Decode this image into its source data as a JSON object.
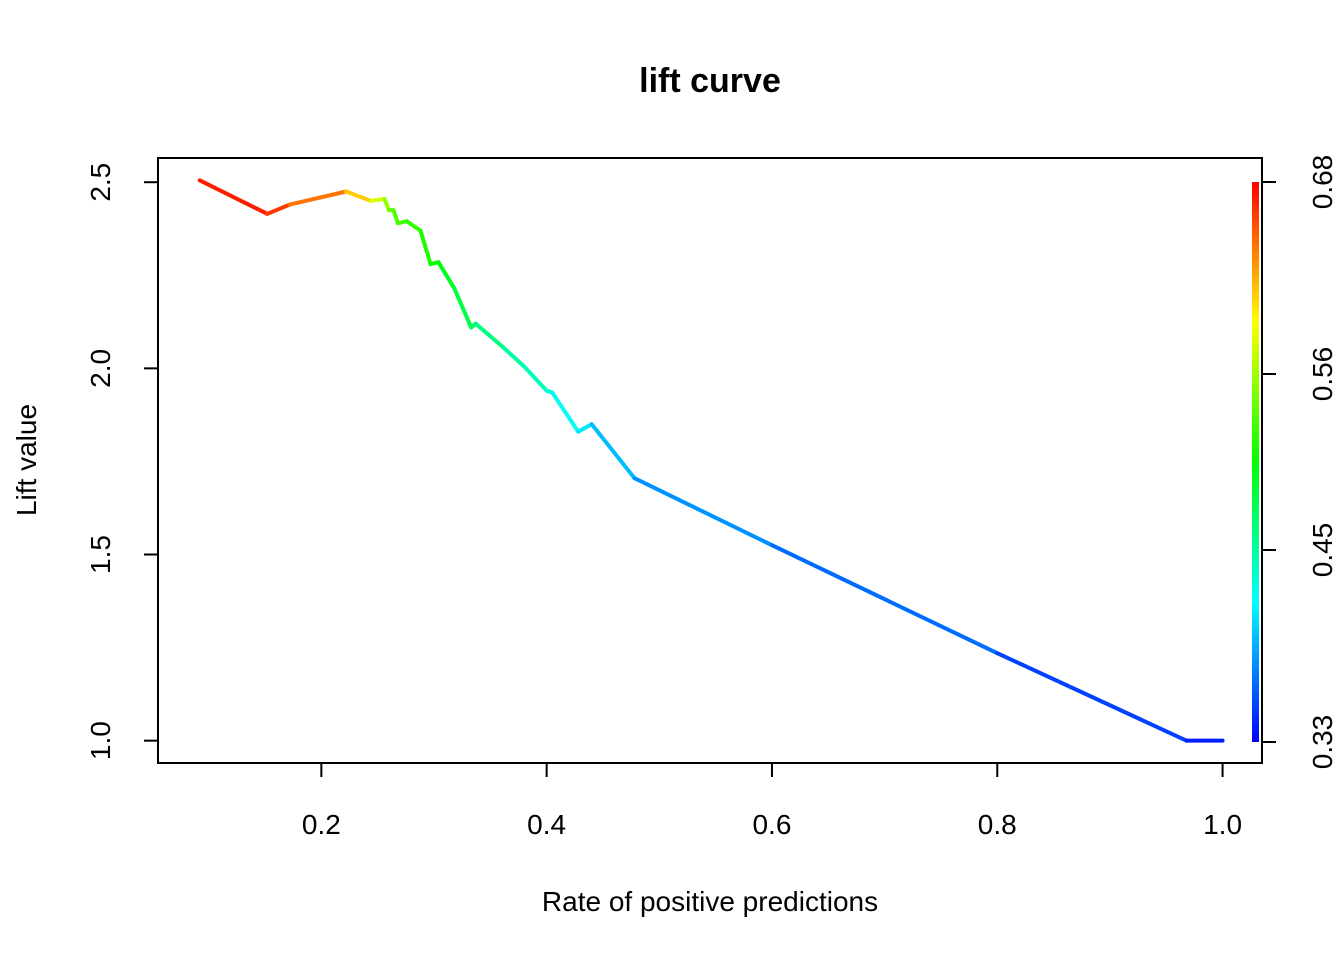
{
  "chart_data": {
    "type": "line",
    "title": "lift curve",
    "xlabel": "Rate of positive predictions",
    "ylabel": "Lift value",
    "xlim": [
      0.055,
      1.035
    ],
    "ylim": [
      0.94,
      2.565
    ],
    "x_ticks": [
      0.2,
      0.4,
      0.6,
      0.8,
      1.0
    ],
    "x_tick_labels": [
      "0.2",
      "0.4",
      "0.6",
      "0.8",
      "1.0"
    ],
    "y_ticks": [
      1.0,
      1.5,
      2.0,
      2.5
    ],
    "y_tick_labels": [
      "1.0",
      "1.5",
      "2.0",
      "2.5"
    ],
    "colorbar": {
      "range": [
        0.33,
        0.68
      ],
      "ticks": [
        0.33,
        0.45,
        0.56,
        0.68
      ],
      "tick_labels": [
        "0.33",
        "0.45",
        "0.56",
        "0.68"
      ],
      "palette": [
        "#0000ff",
        "#00ffff",
        "#00ff00",
        "#ffff00",
        "#ff0000"
      ]
    },
    "grid": false,
    "series": [
      {
        "points": [
          {
            "x": 0.092,
            "y": 2.505,
            "c": 0.675
          },
          {
            "x": 0.152,
            "y": 2.415,
            "c": 0.665
          },
          {
            "x": 0.172,
            "y": 2.44,
            "c": 0.655
          },
          {
            "x": 0.222,
            "y": 2.475,
            "c": 0.625
          },
          {
            "x": 0.244,
            "y": 2.45,
            "c": 0.595
          },
          {
            "x": 0.256,
            "y": 2.455,
            "c": 0.565
          },
          {
            "x": 0.26,
            "y": 2.425,
            "c": 0.545
          },
          {
            "x": 0.264,
            "y": 2.425,
            "c": 0.535
          },
          {
            "x": 0.268,
            "y": 2.39,
            "c": 0.53
          },
          {
            "x": 0.276,
            "y": 2.395,
            "c": 0.525
          },
          {
            "x": 0.288,
            "y": 2.37,
            "c": 0.52
          },
          {
            "x": 0.297,
            "y": 2.28,
            "c": 0.51
          },
          {
            "x": 0.304,
            "y": 2.285,
            "c": 0.505
          },
          {
            "x": 0.308,
            "y": 2.265,
            "c": 0.5
          },
          {
            "x": 0.318,
            "y": 2.215,
            "c": 0.49
          },
          {
            "x": 0.333,
            "y": 2.11,
            "c": 0.475
          },
          {
            "x": 0.337,
            "y": 2.12,
            "c": 0.47
          },
          {
            "x": 0.362,
            "y": 2.055,
            "c": 0.455
          },
          {
            "x": 0.38,
            "y": 2.005,
            "c": 0.445
          },
          {
            "x": 0.4,
            "y": 1.94,
            "c": 0.435
          },
          {
            "x": 0.405,
            "y": 1.935,
            "c": 0.43
          },
          {
            "x": 0.428,
            "y": 1.83,
            "c": 0.415
          },
          {
            "x": 0.44,
            "y": 1.85,
            "c": 0.405
          },
          {
            "x": 0.478,
            "y": 1.705,
            "c": 0.385
          },
          {
            "x": 0.6,
            "y": 1.525,
            "c": 0.375
          },
          {
            "x": 0.8,
            "y": 1.235,
            "c": 0.36
          },
          {
            "x": 0.968,
            "y": 1.0,
            "c": 0.345
          },
          {
            "x": 1.0,
            "y": 1.0,
            "c": 0.335
          }
        ]
      }
    ]
  }
}
